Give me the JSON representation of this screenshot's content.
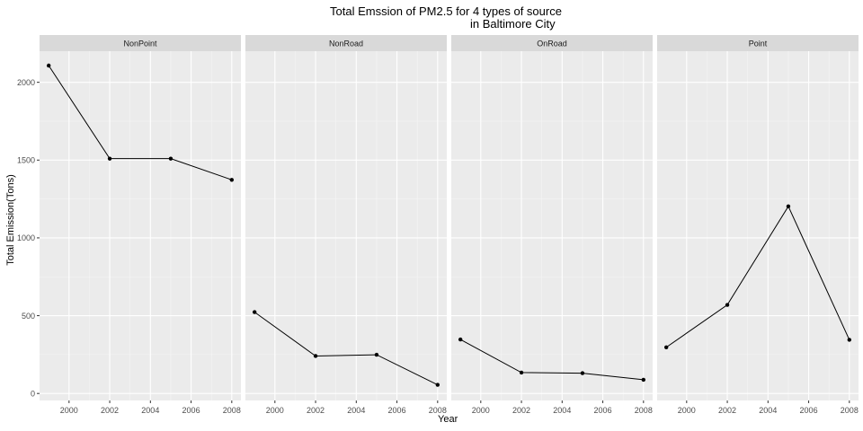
{
  "chart_data": {
    "type": "line",
    "title_line1": "Total Emssion of PM2.5 for 4 types of source",
    "title_line2": "in Baltimore City",
    "xlabel": "Year",
    "ylabel": "Total Emission(Tons)",
    "x": [
      1999,
      2002,
      2005,
      2008
    ],
    "xticks": [
      2000,
      2002,
      2004,
      2006,
      2008
    ],
    "yticks": [
      0,
      500,
      1000,
      1500,
      2000
    ],
    "ylim": [
      -45,
      2200
    ],
    "xlim": [
      1998.55,
      2008.45
    ],
    "grid": true,
    "panels": [
      {
        "name": "NonPoint",
        "values": [
          2107.6,
          1509.5,
          1509.5,
          1373.2
        ]
      },
      {
        "name": "NonRoad",
        "values": [
          522.9,
          240.8,
          248.9,
          55.8
        ]
      },
      {
        "name": "OnRoad",
        "values": [
          346.8,
          134.3,
          130.4,
          88.3
        ]
      },
      {
        "name": "Point",
        "values": [
          296.8,
          569.3,
          1202.5,
          344.98
        ]
      }
    ]
  },
  "colors": {
    "panel_bg": "#ebebeb",
    "strip_bg": "#d9d9d9",
    "grid_major": "#ffffff",
    "grid_minor": "#f5f5f5",
    "line": "#000000",
    "tick_text": "#4d4d4d"
  }
}
